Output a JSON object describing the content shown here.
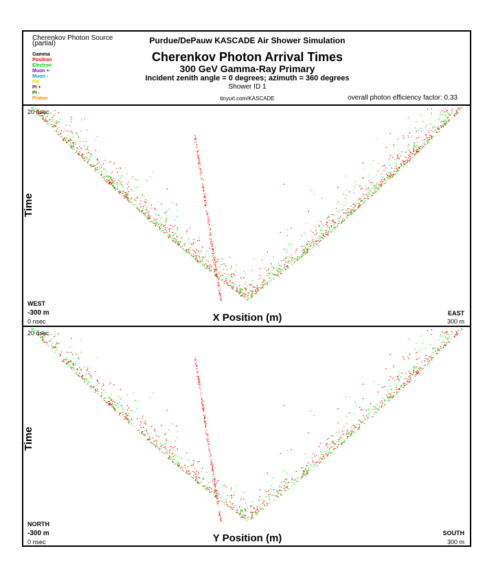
{
  "header": {
    "source_label": "Cherenkov Photon Source",
    "source_sub": "(partial)",
    "sim_title": "Purdue/DePauw KASCADE Air Shower Simulation",
    "main_title": "Cherenkov Photon Arrival Times",
    "subtitle": "300 GeV Gamma-Ray Primary",
    "incident": "Incident zenith angle =  0 degrees;  azimuth =  360 degrees",
    "shower_id": "Shower ID 1",
    "url": "tinyurl.com/KASCADE",
    "efficiency": "overall photon efficiency factor: 0.33"
  },
  "legend": [
    {
      "label": "Gamma",
      "color": "#000000"
    },
    {
      "label": "Positron",
      "color": "#ff0000"
    },
    {
      "label": "Electron",
      "color": "#00cc00"
    },
    {
      "label": "Muon +",
      "color": "#8a00a8"
    },
    {
      "label": "Muon -",
      "color": "#0099cc"
    },
    {
      "label": "Pi0",
      "color": "#dddd00"
    },
    {
      "label": "PI +",
      "color": "#880000"
    },
    {
      "label": "PI -",
      "color": "#006600"
    },
    {
      "label": "Proton",
      "color": "#ff8800"
    }
  ],
  "colors": {
    "positron": "#ff0000",
    "electron": "#22ee22"
  },
  "panels": [
    {
      "time_max": "20 nsec",
      "time_min": "0 nsec",
      "ylabel": "Time",
      "xlabel": "X Position (m)",
      "left_dir": "WEST",
      "right_dir": "EAST",
      "left_pos": "-300 m",
      "right_pos": "300 m"
    },
    {
      "time_max": "20 nsec",
      "time_min": "0 nsec",
      "ylabel": "Time",
      "xlabel": "Y Position (m)",
      "left_dir": "NORTH",
      "right_dir": "SOUTH",
      "left_pos": "-300 m",
      "right_pos": "300 m"
    }
  ],
  "chart_data": [
    {
      "type": "scatter",
      "title": "X Position (m)",
      "xlabel": "X Position (m)",
      "ylabel": "Time",
      "xlim": [
        -300,
        300
      ],
      "ylim": [
        0,
        20
      ],
      "series": [
        {
          "name": "Positron",
          "color": "#ff0000",
          "shape": "v",
          "apex": [
            0,
            1.5
          ],
          "arm_at_300": 18
        },
        {
          "name": "Electron",
          "color": "#22ee22",
          "shape": "v",
          "apex": [
            0,
            1.5
          ],
          "arm_at_300": 18
        }
      ]
    },
    {
      "type": "scatter",
      "title": "Y Position (m)",
      "xlabel": "Y Position (m)",
      "ylabel": "Time",
      "xlim": [
        -300,
        300
      ],
      "ylim": [
        0,
        20
      ],
      "series": [
        {
          "name": "Positron",
          "color": "#ff0000",
          "shape": "v",
          "apex": [
            0,
            1.5
          ],
          "arm_at_300": 18
        },
        {
          "name": "Electron",
          "color": "#22ee22",
          "shape": "v",
          "apex": [
            0,
            1.5
          ],
          "arm_at_300": 18
        }
      ]
    }
  ]
}
